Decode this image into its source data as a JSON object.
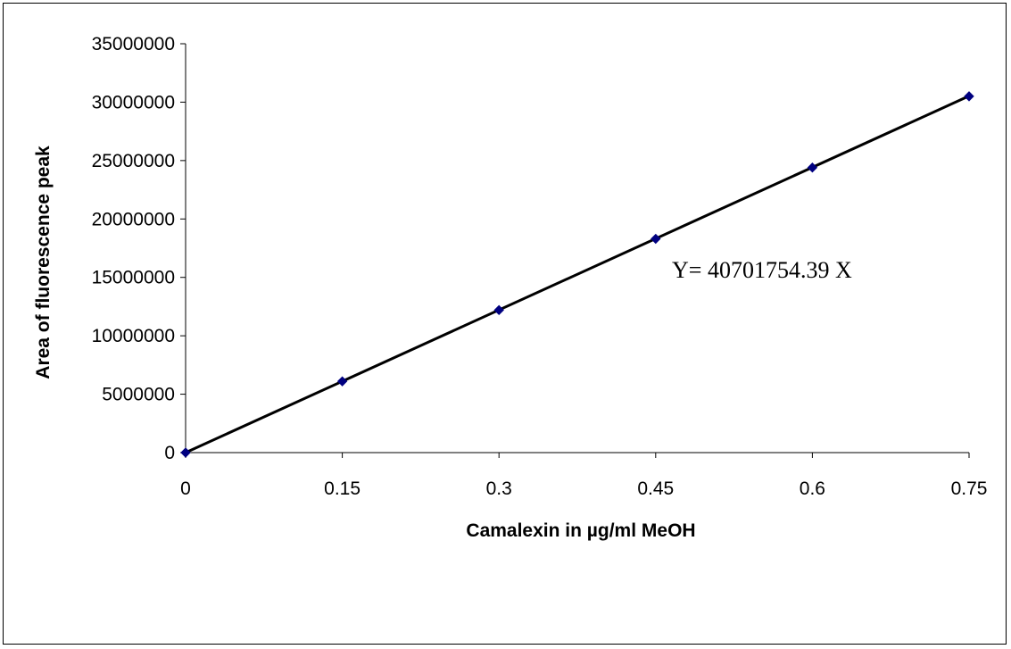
{
  "chart_data": {
    "type": "scatter",
    "title": "",
    "xlabel": "Camalexin in µg/ml MeOH",
    "ylabel": "Area of fluorescence peak",
    "xlim": [
      0,
      0.75
    ],
    "ylim": [
      0,
      35000000
    ],
    "x_ticks": [
      "0",
      "0.15",
      "0.3",
      "0.45",
      "0.6",
      "0.75"
    ],
    "y_ticks": [
      "0",
      "5000000",
      "10000000",
      "15000000",
      "20000000",
      "25000000",
      "30000000",
      "35000000"
    ],
    "grid": false,
    "legend": "none",
    "series": [
      {
        "x": [
          0,
          0.15,
          0.3,
          0.45,
          0.6,
          0.75
        ],
        "y": [
          0,
          6100000,
          12200000,
          18300000,
          24400000,
          30500000
        ],
        "marker": "diamond",
        "marker_color": "#000080"
      }
    ],
    "trendline": {
      "slope": 40701754.39,
      "intercept": 0,
      "x_range": [
        0,
        0.75
      ],
      "color": "#000000"
    },
    "annotations": [
      {
        "text": "Y= 40701754.39 X"
      }
    ]
  }
}
